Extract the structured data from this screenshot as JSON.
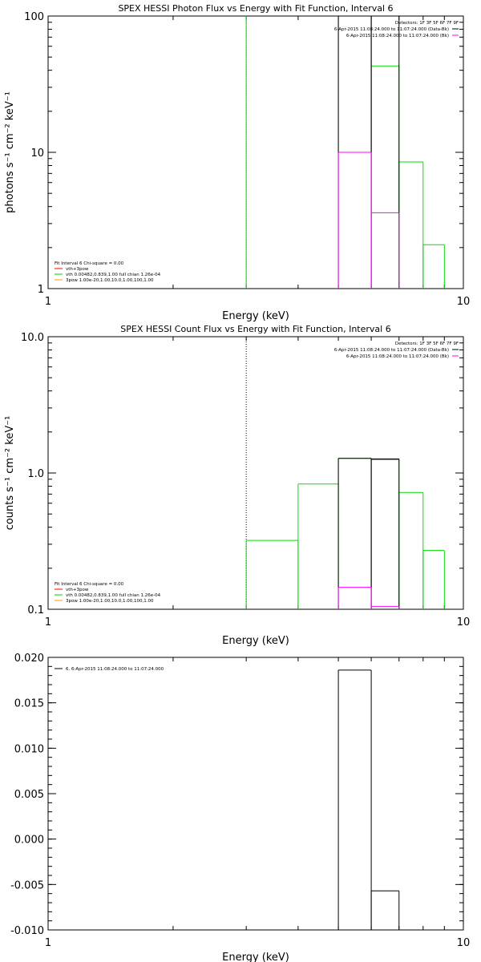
{
  "chart_data": [
    {
      "type": "line",
      "title": "SPEX HESSI Photon Flux vs Energy with Fit Function, Interval 6",
      "xlabel": "Energy (keV)",
      "ylabel": "photons s⁻¹ cm⁻² keV⁻¹",
      "xscale": "log",
      "yscale": "log",
      "xlim": [
        1,
        10
      ],
      "ylim": [
        1,
        100
      ],
      "xticks": [
        {
          "v": 1,
          "label": "1"
        },
        {
          "v": 10,
          "label": "10"
        }
      ],
      "yticks": [
        {
          "v": 1,
          "label": "1"
        },
        {
          "v": 10,
          "label": "10"
        },
        {
          "v": 100,
          "label": "100"
        }
      ],
      "detectors_label": "Detectors: 1F 3F 5F 6F 7F 9F",
      "legend_right": [
        {
          "text": "6-Apr-2015 11:08:24.000 to 11:07:24.000 (Data-Bk)",
          "color": "#000000"
        },
        {
          "text": "6-Apr-2015 11:08:24.000 to 11:07:24.000 (Bk)",
          "color": "#ff00ff"
        }
      ],
      "legend_left": [
        {
          "text": "Fit Interval  6   Chi-square = 0.00",
          "color": null
        },
        {
          "text": "vth+3pow",
          "color": "#ff0000"
        },
        {
          "text": "vth 0.00482,0.839,1.00   full chian 1.26e-04",
          "color": "#00cc00"
        },
        {
          "text": "3pow 1.00e-20,1.00,10.0,1.00,100,1.00",
          "color": "#ff9900"
        }
      ],
      "vline": {
        "x": 3,
        "color": "#00aa00",
        "style": "dotted"
      },
      "series": [
        {
          "color": "#00dd00",
          "steps": [
            [
              3,
              null,
              100
            ]
          ]
        },
        {
          "color": "#00dd00",
          "steps": [
            [
              5,
              6,
              100
            ],
            [
              6,
              7,
              43
            ],
            [
              7,
              8,
              8.5
            ],
            [
              8,
              9,
              2.1
            ]
          ]
        },
        {
          "color": "#000000",
          "steps": [
            [
              5,
              6,
              100
            ],
            [
              6,
              7,
              100
            ]
          ]
        },
        {
          "color": "#ff00ff",
          "steps": [
            [
              5,
              6,
              10
            ],
            [
              6,
              7,
              3.6
            ]
          ]
        }
      ]
    },
    {
      "type": "line",
      "title": "SPEX HESSI Count Flux vs Energy with Fit Function, Interval 6",
      "xlabel": "Energy (keV)",
      "ylabel": "counts s⁻¹ cm⁻² keV⁻¹",
      "xscale": "log",
      "yscale": "log",
      "xlim": [
        1,
        10
      ],
      "ylim": [
        0.1,
        10
      ],
      "xticks": [
        {
          "v": 1,
          "label": "1"
        },
        {
          "v": 10,
          "label": "10"
        }
      ],
      "yticks": [
        {
          "v": 0.1,
          "label": "0.1"
        },
        {
          "v": 1,
          "label": "1.0"
        },
        {
          "v": 10,
          "label": "10.0"
        }
      ],
      "detectors_label": "Detectors: 1F 3F 5F 6F 7F 9F",
      "legend_right": [
        {
          "text": "6-Apr-2015 11:08:24.000 to 11:07:24.000 (Data-Bk)",
          "color": "#000000"
        },
        {
          "text": "6-Apr-2015 11:08:24.000 to 11:07:24.000 (Bk)",
          "color": "#ff00ff"
        }
      ],
      "legend_left": [
        {
          "text": "Fit Interval  6   Chi-square = 0.00",
          "color": null
        },
        {
          "text": "vth+3pow",
          "color": "#ff0000"
        },
        {
          "text": "vth 0.00482,0.839,1.00   full chian 1.26e-04",
          "color": "#00cc00"
        },
        {
          "text": "3pow 1.00e-20,1.00,10.0,1.00,100,1.00",
          "color": "#ff9900"
        }
      ],
      "vline": {
        "x": 3,
        "color": "#000000",
        "style": "dotted"
      },
      "series": [
        {
          "color": "#00dd00",
          "steps": [
            [
              3,
              4,
              0.32
            ],
            [
              4,
              5,
              0.83
            ],
            [
              5,
              6,
              1.28
            ],
            [
              6,
              7,
              1.25
            ],
            [
              7,
              8,
              0.72
            ],
            [
              8,
              9,
              0.27
            ]
          ]
        },
        {
          "color": "#000000",
          "steps": [
            [
              5,
              6,
              1.28
            ],
            [
              6,
              7,
              1.27
            ]
          ]
        },
        {
          "color": "#ff00ff",
          "steps": [
            [
              5,
              6,
              0.145
            ],
            [
              6,
              7,
              0.105
            ]
          ]
        }
      ]
    },
    {
      "type": "line",
      "title": "",
      "xlabel": "Energy (keV)",
      "ylabel": "",
      "xscale": "log",
      "yscale": "linear",
      "xlim": [
        1,
        10
      ],
      "ylim": [
        -0.01,
        0.02
      ],
      "xticks": [
        {
          "v": 1,
          "label": "1"
        },
        {
          "v": 10,
          "label": "10"
        }
      ],
      "yticks": [
        {
          "v": -0.01,
          "label": "-0.010"
        },
        {
          "v": -0.005,
          "label": "-0.005"
        },
        {
          "v": 0,
          "label": "0.000"
        },
        {
          "v": 0.005,
          "label": "0.005"
        },
        {
          "v": 0.01,
          "label": "0.010"
        },
        {
          "v": 0.015,
          "label": "0.015"
        },
        {
          "v": 0.02,
          "label": "0.020"
        }
      ],
      "legend_left": [
        {
          "text": "6.  6-Apr-2015 11:08:24.000 to 11:07:24.000",
          "color": "#000000"
        }
      ],
      "series": [
        {
          "color": "#000000",
          "steps": [
            [
              5,
              6,
              0.0186
            ],
            [
              6,
              7,
              -0.0057
            ]
          ]
        }
      ]
    }
  ]
}
